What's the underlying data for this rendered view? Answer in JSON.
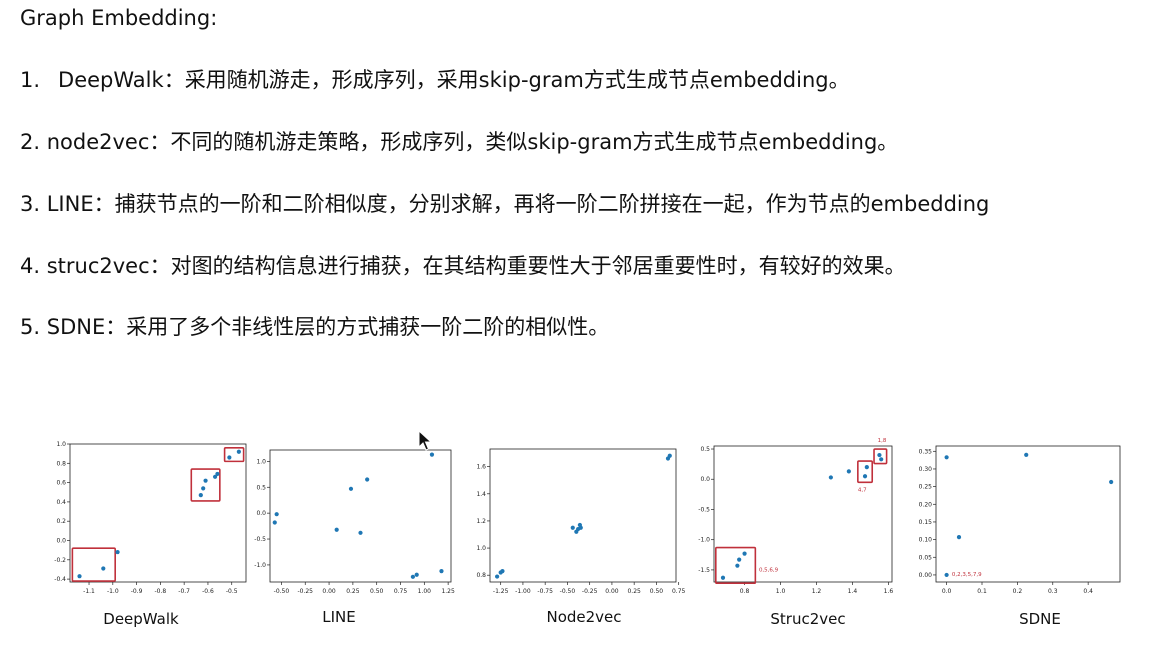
{
  "title": "Graph Embedding:",
  "items": [
    {
      "num": "1.",
      "name": "DeepWalk",
      "sep": "：",
      "desc": "采用随机游走，形成序列，采用skip-gram方式生成节点embedding。"
    },
    {
      "num": "2.",
      "name": "node2vec",
      "sep": "：",
      "desc": "不同的随机游走策略，形成序列，类似skip-gram方式生成节点embedding。"
    },
    {
      "num": "3.",
      "name": "LINE",
      "sep": "：",
      "desc": "捕获节点的一阶和二阶相似度，分别求解，再将一阶二阶拼接在一起，作为节点的embedding"
    },
    {
      "num": "4.",
      "name": "struc2vec",
      "sep": "：",
      "desc": "对图的结构信息进行捕获，在其结构重要性大于邻居重要性时，有较好的效果。"
    },
    {
      "num": "5.",
      "name": "SDNE",
      "sep": "：",
      "desc": "采用了多个非线性层的方式捕获一阶二阶的相似性。"
    }
  ],
  "chart_data": [
    {
      "type": "scatter",
      "caption": "DeepWalk",
      "xlim": [
        -1.18,
        -0.44
      ],
      "ylim": [
        -0.43,
        1.0
      ],
      "xticks": [
        "-1.1",
        "-1.0",
        "-0.9",
        "-0.8",
        "-0.7",
        "-0.6",
        "-0.5"
      ],
      "xtick_values": [
        -1.1,
        -1.0,
        -0.9,
        -0.8,
        -0.7,
        -0.6,
        -0.5
      ],
      "yticks": [
        "-0.4",
        "-0.2",
        "0.0",
        "0.2",
        "0.4",
        "0.6",
        "0.8",
        "1.0"
      ],
      "ytick_values": [
        -0.4,
        -0.2,
        0.0,
        0.2,
        0.4,
        0.6,
        0.8,
        1.0
      ],
      "points": [
        [
          -1.14,
          -0.37
        ],
        [
          -1.04,
          -0.29
        ],
        [
          -0.98,
          -0.12
        ],
        [
          -0.63,
          0.47
        ],
        [
          -0.62,
          0.54
        ],
        [
          -0.61,
          0.62
        ],
        [
          -0.57,
          0.66
        ],
        [
          -0.56,
          0.69
        ],
        [
          -0.51,
          0.86
        ],
        [
          -0.47,
          0.92
        ]
      ],
      "boxes": [
        [
          -1.17,
          -0.99,
          -0.42,
          -0.08
        ],
        [
          -0.67,
          -0.55,
          0.41,
          0.74
        ],
        [
          -0.53,
          -0.45,
          0.82,
          0.96
        ]
      ],
      "annotations": []
    },
    {
      "type": "scatter",
      "caption": "LINE",
      "xlim": [
        -0.62,
        1.28
      ],
      "ylim": [
        -1.33,
        1.22
      ],
      "xticks": [
        "-0.50",
        "-0.25",
        "0.00",
        "0.25",
        "0.50",
        "0.75",
        "1.00",
        "1.25"
      ],
      "xtick_values": [
        -0.5,
        -0.25,
        0.0,
        0.25,
        0.5,
        0.75,
        1.0,
        1.25
      ],
      "yticks": [
        "-1.0",
        "-0.5",
        "0.0",
        "0.5",
        "1.0"
      ],
      "ytick_values": [
        -1.0,
        -0.5,
        0.0,
        0.5,
        1.0
      ],
      "points": [
        [
          -0.57,
          -0.18
        ],
        [
          -0.55,
          -0.02
        ],
        [
          0.08,
          -0.32
        ],
        [
          0.23,
          0.47
        ],
        [
          0.33,
          -0.38
        ],
        [
          0.4,
          0.65
        ],
        [
          0.88,
          -1.23
        ],
        [
          0.92,
          -1.19
        ],
        [
          1.08,
          1.13
        ],
        [
          1.18,
          -1.12
        ]
      ],
      "boxes": [],
      "annotations": []
    },
    {
      "type": "scatter",
      "caption": "Node2vec",
      "xlim": [
        -1.37,
        0.72
      ],
      "ylim": [
        0.75,
        1.73
      ],
      "xticks": [
        "-1.25",
        "-1.00",
        "-0.75",
        "-0.50",
        "-0.25",
        "0.00",
        "0.25",
        "0.50",
        "0.75"
      ],
      "xtick_values": [
        -1.25,
        -1.0,
        -0.75,
        -0.5,
        -0.25,
        0.0,
        0.25,
        0.5,
        0.75
      ],
      "yticks": [
        "0.8",
        "1.0",
        "1.2",
        "1.4",
        "1.6"
      ],
      "ytick_values": [
        0.8,
        1.0,
        1.2,
        1.4,
        1.6
      ],
      "points": [
        [
          -1.29,
          0.79
        ],
        [
          -1.25,
          0.82
        ],
        [
          -1.23,
          0.83
        ],
        [
          -0.44,
          1.15
        ],
        [
          -0.4,
          1.12
        ],
        [
          -0.38,
          1.14
        ],
        [
          -0.36,
          1.17
        ],
        [
          -0.35,
          1.15
        ],
        [
          0.63,
          1.66
        ],
        [
          0.65,
          1.68
        ]
      ],
      "boxes": [],
      "annotations": []
    },
    {
      "type": "scatter",
      "caption": "Struc2vec",
      "xlim": [
        0.63,
        1.62
      ],
      "ylim": [
        -1.7,
        0.55
      ],
      "xticks": [
        "0.8",
        "1.0",
        "1.2",
        "1.4",
        "1.6"
      ],
      "xtick_values": [
        0.8,
        1.0,
        1.2,
        1.4,
        1.6
      ],
      "yticks": [
        "-1.5",
        "-1.0",
        "-0.5",
        "0.0",
        "0.5"
      ],
      "ytick_values": [
        -1.5,
        -1.0,
        -0.5,
        0.0,
        0.5
      ],
      "points": [
        [
          0.68,
          -1.63
        ],
        [
          0.76,
          -1.43
        ],
        [
          0.77,
          -1.33
        ],
        [
          0.8,
          -1.23
        ],
        [
          1.28,
          0.03
        ],
        [
          1.38,
          0.13
        ],
        [
          1.47,
          0.05
        ],
        [
          1.48,
          0.2
        ],
        [
          1.55,
          0.4
        ],
        [
          1.56,
          0.33
        ]
      ],
      "boxes": [
        [
          0.64,
          0.86,
          -1.72,
          -1.13
        ],
        [
          1.43,
          1.51,
          -0.05,
          0.3
        ],
        [
          1.52,
          1.59,
          0.26,
          0.5
        ]
      ],
      "annotations": [
        {
          "text": "0,5,6,9",
          "x": 0.88,
          "y": -1.53
        },
        {
          "text": "4,7",
          "x": 1.43,
          "y": -0.2
        },
        {
          "text": "1,8",
          "x": 1.54,
          "y": 0.62
        }
      ]
    },
    {
      "type": "scatter",
      "caption": "SDNE",
      "xlim": [
        -0.03,
        0.49
      ],
      "ylim": [
        -0.02,
        0.365
      ],
      "xticks": [
        "0.0",
        "0.1",
        "0.2",
        "0.3",
        "0.4"
      ],
      "xtick_values": [
        0.0,
        0.1,
        0.2,
        0.3,
        0.4
      ],
      "yticks": [
        "0.00",
        "0.05",
        "0.10",
        "0.15",
        "0.20",
        "0.25",
        "0.30",
        "0.35"
      ],
      "ytick_values": [
        0.0,
        0.05,
        0.1,
        0.15,
        0.2,
        0.25,
        0.3,
        0.35
      ],
      "points": [
        [
          0.0,
          0.0
        ],
        [
          0.0,
          0.333
        ],
        [
          0.035,
          0.107
        ],
        [
          0.225,
          0.34
        ],
        [
          0.465,
          0.263
        ]
      ],
      "boxes": [],
      "annotations": [
        {
          "text": "0,2,3,5,7,9",
          "x": 0.015,
          "y": -0.003
        }
      ]
    }
  ],
  "colors": {
    "point": "#1f77b4",
    "box": "#c0303b",
    "annotation": "#c0303b"
  }
}
